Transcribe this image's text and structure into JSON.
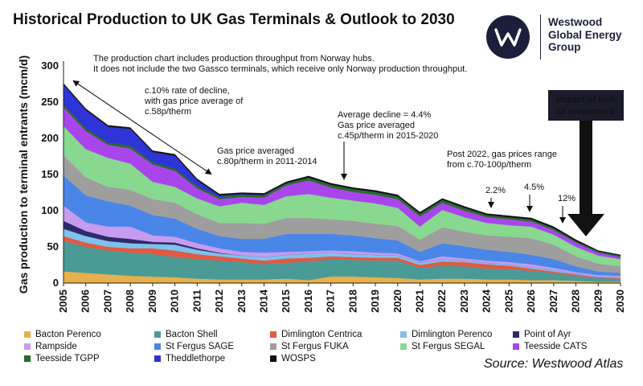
{
  "header": {
    "title": "Historical Production to UK Gas Terminals & Outlook to 2030"
  },
  "logo": {
    "name_line1": "Westwood",
    "name_line2": "Global Energy",
    "name_line3": "Group",
    "icon": "westwood-w-logo"
  },
  "source": "Source: Westwood Atlas",
  "chart_data": {
    "type": "area",
    "stacked": true,
    "ylabel": "Gas production to terminal entrants (mcm/d)",
    "xlabel": "",
    "ylim": [
      0,
      300
    ],
    "yticks": [
      0,
      50,
      100,
      150,
      200,
      250,
      300
    ],
    "grid": false,
    "legend_position": "bottom",
    "x": [
      "2005",
      "2006",
      "2007",
      "2008",
      "2009",
      "2010",
      "2011",
      "2012",
      "2013",
      "2014",
      "2015",
      "2016",
      "2017",
      "2018",
      "2019",
      "2020",
      "2021",
      "2022",
      "2023",
      "2024",
      "2025",
      "2026",
      "2027",
      "2028",
      "2029",
      "2030"
    ],
    "series": [
      {
        "name": "Bacton Perenco",
        "color": "#e8b04a",
        "values": [
          16,
          14,
          12,
          10,
          9,
          8,
          6,
          5,
          5,
          5,
          6,
          4,
          9,
          9,
          8,
          7,
          5,
          6,
          6,
          5,
          5,
          4,
          4,
          3,
          2,
          2
        ]
      },
      {
        "name": "Bacton Shell",
        "color": "#4a9a96",
        "values": [
          42,
          36,
          33,
          32,
          31,
          28,
          27,
          26,
          24,
          21,
          22,
          26,
          24,
          23,
          23,
          24,
          16,
          18,
          17,
          15,
          14,
          13,
          10,
          7,
          5,
          4
        ]
      },
      {
        "name": "Dimlington Centrica",
        "color": "#e05a44",
        "values": [
          7,
          6,
          5,
          6,
          8,
          9,
          7,
          6,
          5,
          5,
          6,
          5,
          4,
          4,
          4,
          4,
          4,
          6,
          6,
          6,
          5,
          3,
          2,
          2,
          1,
          1
        ]
      },
      {
        "name": "Dimlington Perenco",
        "color": "#7ec1ec",
        "values": [
          10,
          9,
          8,
          7,
          6,
          8,
          6,
          4,
          4,
          5,
          5,
          6,
          5,
          4,
          4,
          3,
          3,
          3,
          2,
          2,
          2,
          2,
          2,
          1,
          1,
          1
        ]
      },
      {
        "name": "Point of Ayr",
        "color": "#2e2a6a",
        "values": [
          11,
          7,
          6,
          6,
          3,
          3,
          2,
          1,
          0,
          0,
          0,
          0,
          0,
          0,
          0,
          0,
          0,
          0,
          0,
          0,
          0,
          0,
          0,
          0,
          0,
          0
        ]
      },
      {
        "name": "Rampside",
        "color": "#c79bf0",
        "values": [
          21,
          12,
          14,
          17,
          9,
          8,
          7,
          6,
          5,
          6,
          4,
          3,
          3,
          4,
          3,
          3,
          2,
          4,
          3,
          3,
          3,
          4,
          3,
          2,
          2,
          2
        ]
      },
      {
        "name": "St Fergus SAGE",
        "color": "#4a86e8",
        "values": [
          42,
          37,
          35,
          29,
          28,
          25,
          20,
          17,
          18,
          19,
          25,
          24,
          23,
          22,
          20,
          18,
          13,
          18,
          17,
          15,
          14,
          13,
          12,
          8,
          5,
          4
        ]
      },
      {
        "name": "St Fergus FUKA",
        "color": "#9e9e9e",
        "values": [
          28,
          25,
          20,
          22,
          22,
          22,
          20,
          18,
          22,
          21,
          22,
          22,
          20,
          20,
          20,
          20,
          17,
          22,
          20,
          20,
          21,
          23,
          20,
          14,
          11,
          9
        ]
      },
      {
        "name": "St Fergus SEGAL",
        "color": "#88d890",
        "values": [
          40,
          39,
          40,
          36,
          24,
          22,
          22,
          23,
          28,
          26,
          30,
          33,
          30,
          28,
          28,
          25,
          18,
          24,
          20,
          17,
          16,
          16,
          14,
          13,
          11,
          10
        ]
      },
      {
        "name": "Teesside CATS",
        "color": "#a846ec",
        "values": [
          26,
          25,
          18,
          21,
          24,
          22,
          14,
          10,
          8,
          10,
          15,
          19,
          14,
          12,
          12,
          12,
          14,
          10,
          9,
          8,
          8,
          7,
          6,
          6,
          4,
          3
        ]
      },
      {
        "name": "Teesside TGPP",
        "color": "#2a6a2a",
        "values": [
          4,
          4,
          3,
          4,
          3,
          3,
          3,
          3,
          3,
          3,
          3,
          4,
          4,
          4,
          4,
          4,
          4,
          4,
          4,
          3,
          3,
          3,
          3,
          2,
          2,
          2
        ]
      },
      {
        "name": "Theddlethorpe",
        "color": "#2e34d6",
        "values": [
          27,
          25,
          22,
          23,
          14,
          18,
          8,
          2,
          1,
          1,
          0,
          0,
          0,
          0,
          0,
          0,
          0,
          0,
          0,
          0,
          0,
          0,
          0,
          0,
          0,
          0
        ]
      },
      {
        "name": "WOSPS",
        "color": "#111111",
        "values": [
          2,
          2,
          2,
          2,
          2,
          2,
          2,
          2,
          2,
          2,
          2,
          2,
          2,
          2,
          2,
          2,
          2,
          2,
          2,
          2,
          2,
          2,
          2,
          2,
          1,
          1
        ]
      }
    ],
    "annotations": [
      {
        "id": "note_norway_1",
        "text": "The production chart includes production throughput from Norway hubs."
      },
      {
        "id": "note_norway_2",
        "text": "It does not include the two Gassco terminals, which receive only Norway production throughput."
      },
      {
        "id": "decline_1",
        "text": "c.10% rate of decline,"
      },
      {
        "id": "decline_2",
        "text": "with gas price average of"
      },
      {
        "id": "decline_3",
        "text": "c.58p/therm"
      },
      {
        "id": "price2011_1",
        "text": "Gas price averaged"
      },
      {
        "id": "price2011_2",
        "text": "c.80p/therm in 2011-2014"
      },
      {
        "id": "avg_1",
        "text": "Average decline = 4.4%"
      },
      {
        "id": "avg_2",
        "text": "Gas price averaged"
      },
      {
        "id": "avg_3",
        "text": "c.45p/therm in 2015-2020"
      },
      {
        "id": "post_1",
        "text": "Post 2022, gas prices range"
      },
      {
        "id": "post_2",
        "text": "from c.70-100p/therm"
      },
      {
        "id": "pct_2024",
        "text": "2.2%"
      },
      {
        "id": "pct_2026",
        "text": "4.5%"
      },
      {
        "id": "pct_2027",
        "text": "12%"
      },
      {
        "id": "impact_1",
        "text": "Impact of lack"
      },
      {
        "id": "impact_2",
        "text": "of investment"
      }
    ]
  }
}
